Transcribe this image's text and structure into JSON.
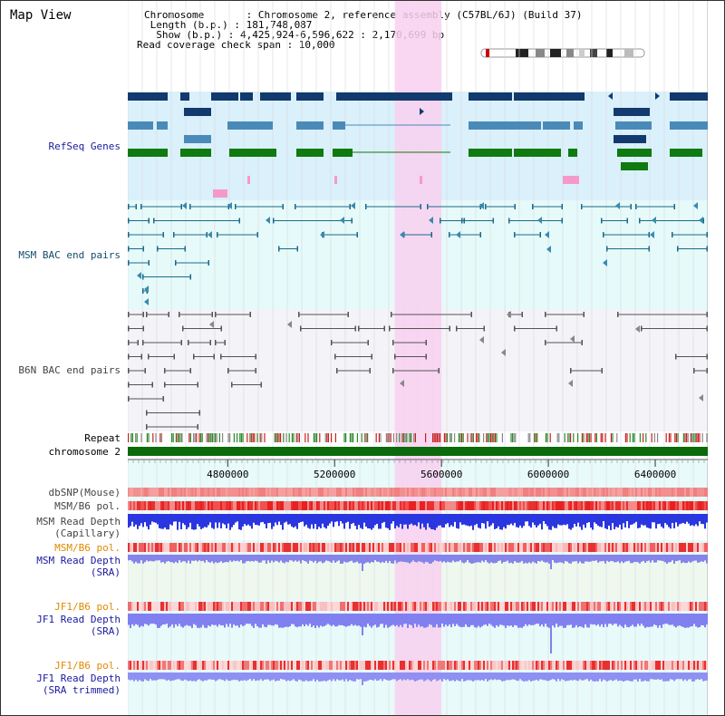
{
  "app": {
    "title": "Map View"
  },
  "info": {
    "chromosome": "Chromosome       : Chromosome 2, reference assembly (C57BL/6J) (Build 37)",
    "length": " Length (b.p.) : 181,748,087",
    "show": "  Show (b.p.) : 4,425,924-6,596,622 : 2,170,699 bp",
    "coverage": "Read coverage check span : 10,000"
  },
  "tracks": {
    "refseq": "RefSeq Genes",
    "msm_bac": "MSM BAC end pairs",
    "b6n_bac": "B6N BAC end pairs",
    "repeat": "Repeat",
    "chromosome": "chromosome 2",
    "dbsnp": "dbSNP(Mouse)",
    "msm_b6_pol": "MSM/B6 pol.",
    "msm_depth_cap_1": "MSM Read Depth",
    "msm_depth_cap_2": "(Capillary)",
    "msm_b6_pol_sra": "MSM/B6 pol.",
    "msm_depth_sra_1": "MSM Read Depth",
    "msm_depth_sra_2": "(SRA)",
    "jf1_b6_pol": "JF1/B6 pol.",
    "jf1_depth_sra_1": "JF1 Read Depth",
    "jf1_depth_sra_2": "(SRA)",
    "jf1_b6_pol_trim": "JF1/B6 pol.",
    "jf1_depth_trim_1": "JF1 Read Depth",
    "jf1_depth_trim_2": "(SRA trimmed)"
  },
  "ruler": {
    "ticks": [
      {
        "bp": 4800000,
        "label": "4800000"
      },
      {
        "bp": 5200000,
        "label": "5200000"
      },
      {
        "bp": 5600000,
        "label": "5600000"
      },
      {
        "bp": 6000000,
        "label": "6000000"
      },
      {
        "bp": 6400000,
        "label": "6400000"
      }
    ],
    "range_bp": [
      4425924,
      6596622
    ]
  },
  "highlight_bp": [
    5425000,
    5600000
  ],
  "colors": {
    "refseq_bg": "#daf0fa",
    "msm_bg": "#e6fafa",
    "b6n_bg": "#f3f3f8",
    "lower_bg": "#e8fafa",
    "highlight": "#f8d0f0",
    "gene_navy": "#123a6e",
    "gene_steel": "#4a8ab8",
    "gene_green": "#0f7a0f",
    "gene_pink": "#f59ac8",
    "depth_blue": "#2830e8",
    "depth_light": "#8a8af0",
    "pol_red": "#e83030",
    "pol_pink": "#f4a0a0",
    "chrom_green": "#0c6a0c"
  }
}
